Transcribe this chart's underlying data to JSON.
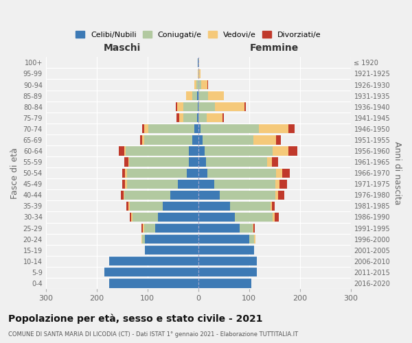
{
  "age_groups": [
    "100+",
    "95-99",
    "90-94",
    "85-89",
    "80-84",
    "75-79",
    "70-74",
    "65-69",
    "60-64",
    "55-59",
    "50-54",
    "45-49",
    "40-44",
    "35-39",
    "30-34",
    "25-29",
    "20-24",
    "15-19",
    "10-14",
    "5-9",
    "0-4"
  ],
  "birth_years": [
    "≤ 1920",
    "1921-1925",
    "1926-1930",
    "1931-1935",
    "1936-1940",
    "1941-1945",
    "1946-1950",
    "1951-1955",
    "1956-1960",
    "1961-1965",
    "1966-1970",
    "1971-1975",
    "1976-1980",
    "1981-1985",
    "1986-1990",
    "1991-1995",
    "1996-2000",
    "2001-2005",
    "2006-2010",
    "2011-2015",
    "2016-2020"
  ],
  "male_celibi": [
    1,
    0,
    0,
    2,
    1,
    2,
    8,
    12,
    18,
    18,
    22,
    40,
    55,
    70,
    80,
    85,
    105,
    105,
    175,
    185,
    175
  ],
  "male_coniugati": [
    0,
    0,
    3,
    10,
    28,
    28,
    90,
    95,
    125,
    118,
    118,
    100,
    90,
    65,
    50,
    22,
    5,
    0,
    0,
    0,
    0
  ],
  "male_vedovi": [
    0,
    1,
    5,
    12,
    12,
    8,
    8,
    3,
    2,
    2,
    4,
    4,
    2,
    2,
    2,
    2,
    2,
    0,
    0,
    0,
    0
  ],
  "male_divorziati": [
    0,
    0,
    0,
    0,
    3,
    5,
    5,
    5,
    12,
    8,
    6,
    6,
    6,
    5,
    3,
    3,
    0,
    0,
    0,
    0,
    0
  ],
  "female_nubili": [
    1,
    1,
    1,
    1,
    1,
    1,
    5,
    8,
    12,
    15,
    18,
    32,
    42,
    62,
    72,
    82,
    100,
    110,
    115,
    115,
    105
  ],
  "female_coniugate": [
    0,
    1,
    5,
    18,
    32,
    15,
    115,
    100,
    135,
    120,
    135,
    120,
    110,
    80,
    75,
    25,
    10,
    0,
    0,
    0,
    0
  ],
  "female_vedove": [
    1,
    2,
    12,
    32,
    58,
    32,
    58,
    45,
    30,
    10,
    12,
    8,
    5,
    3,
    3,
    2,
    2,
    0,
    0,
    0,
    0
  ],
  "female_divorziate": [
    0,
    0,
    2,
    0,
    3,
    2,
    12,
    10,
    18,
    12,
    15,
    15,
    12,
    5,
    8,
    2,
    0,
    0,
    0,
    0,
    0
  ],
  "colors": {
    "celibi": "#3d7ab5",
    "coniugati": "#b2c9a0",
    "vedovi": "#f5c97a",
    "divorziati": "#c0392b"
  },
  "xlim": 300,
  "title": "Popolazione per età, sesso e stato civile - 2021",
  "subtitle": "COMUNE DI SANTA MARIA DI LICODIA (CT) - Dati ISTAT 1° gennaio 2021 - Elaborazione TUTTITALIA.IT",
  "ylabel_left": "Fasce di età",
  "ylabel_right": "Anni di nascita",
  "xlabel_left": "Maschi",
  "xlabel_right": "Femmine",
  "background_color": "#f0f0f0",
  "grid_color": "#ffffff"
}
